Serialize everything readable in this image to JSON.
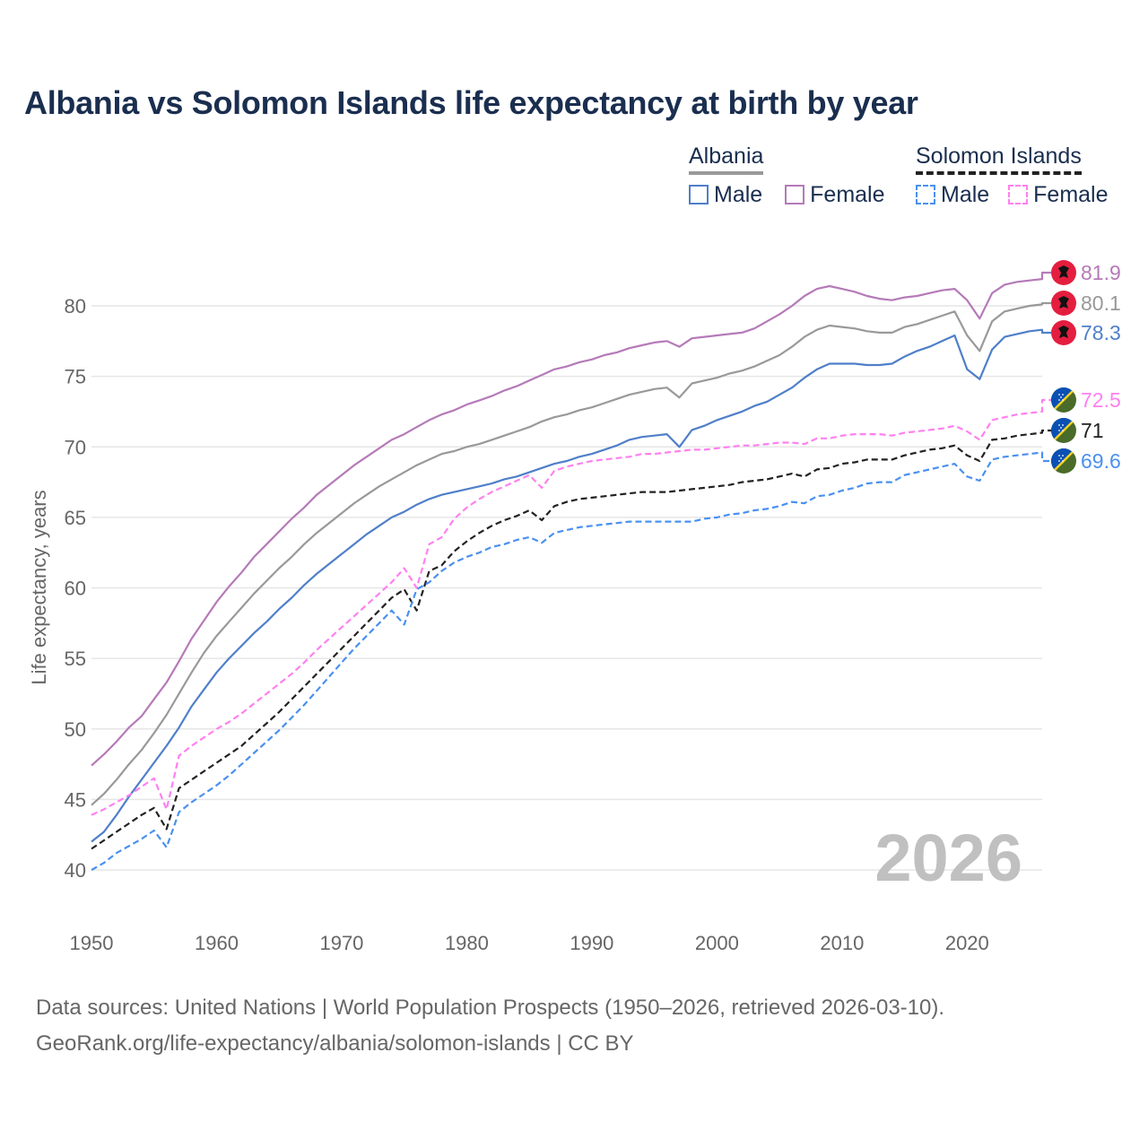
{
  "title": "Albania vs Solomon Islands life expectancy at birth by year",
  "legend": {
    "groups": [
      {
        "name": "Albania",
        "line_color": "#999999",
        "line_style": "solid",
        "items": [
          {
            "label": "Male",
            "color": "#4f7fc9",
            "style": "solid"
          },
          {
            "label": "Female",
            "color": "#b57ab8",
            "style": "solid"
          }
        ]
      },
      {
        "name": "Solomon Islands",
        "line_color": "#222222",
        "line_style": "dashed",
        "items": [
          {
            "label": "Male",
            "color": "#4a90f0",
            "style": "dashed"
          },
          {
            "label": "Female",
            "color": "#ff80f0",
            "style": "dashed"
          }
        ]
      }
    ]
  },
  "year_label": "2026",
  "footer": {
    "line1": "Data sources: United Nations | World Population Prospects (1950–2026, retrieved 2026-03-10).",
    "line2": "GeoRank.org/life-expectancy/albania/solomon-islands | CC BY"
  },
  "chart_data": {
    "type": "line",
    "title": "Albania vs Solomon Islands life expectancy at birth by year",
    "xlabel": "",
    "ylabel": "Life expectancy, years",
    "xlim": [
      1950,
      2026
    ],
    "ylim": [
      38,
      84
    ],
    "x_ticks": [
      1950,
      1960,
      1970,
      1980,
      1990,
      2000,
      2010,
      2020
    ],
    "y_ticks": [
      40,
      45,
      50,
      55,
      60,
      65,
      70,
      75,
      80
    ],
    "grid": true,
    "x": [
      1950,
      1951,
      1952,
      1953,
      1954,
      1955,
      1956,
      1957,
      1958,
      1959,
      1960,
      1961,
      1962,
      1963,
      1964,
      1965,
      1966,
      1967,
      1968,
      1969,
      1970,
      1971,
      1972,
      1973,
      1974,
      1975,
      1976,
      1977,
      1978,
      1979,
      1980,
      1981,
      1982,
      1983,
      1984,
      1985,
      1986,
      1987,
      1988,
      1989,
      1990,
      1991,
      1992,
      1993,
      1994,
      1995,
      1996,
      1997,
      1998,
      1999,
      2000,
      2001,
      2002,
      2003,
      2004,
      2005,
      2006,
      2007,
      2008,
      2009,
      2010,
      2011,
      2012,
      2013,
      2014,
      2015,
      2016,
      2017,
      2018,
      2019,
      2020,
      2021,
      2022,
      2023,
      2024,
      2025,
      2026
    ],
    "series": [
      {
        "name": "Albania Female",
        "color": "#b57ab8",
        "dash": false,
        "end_label": "81.9",
        "values": [
          47.4,
          48.2,
          49.1,
          50.1,
          50.9,
          52.1,
          53.3,
          54.8,
          56.4,
          57.7,
          59.0,
          60.1,
          61.1,
          62.2,
          63.1,
          64.0,
          64.9,
          65.7,
          66.6,
          67.3,
          68.0,
          68.7,
          69.3,
          69.9,
          70.5,
          70.9,
          71.4,
          71.9,
          72.3,
          72.6,
          73.0,
          73.3,
          73.6,
          74.0,
          74.3,
          74.7,
          75.1,
          75.5,
          75.7,
          76.0,
          76.2,
          76.5,
          76.7,
          77.0,
          77.2,
          77.4,
          77.5,
          77.1,
          77.7,
          77.8,
          77.9,
          78.0,
          78.1,
          78.4,
          78.9,
          79.4,
          80.0,
          80.7,
          81.2,
          81.4,
          81.2,
          81.0,
          80.7,
          80.5,
          80.4,
          80.6,
          80.7,
          80.9,
          81.1,
          81.2,
          80.4,
          79.1,
          80.9,
          81.5,
          81.7,
          81.8,
          81.9
        ]
      },
      {
        "name": "Albania Total",
        "color": "#999999",
        "dash": false,
        "end_label": "80.1",
        "values": [
          44.6,
          45.4,
          46.4,
          47.5,
          48.5,
          49.7,
          51.0,
          52.5,
          54.0,
          55.4,
          56.6,
          57.6,
          58.6,
          59.6,
          60.5,
          61.4,
          62.2,
          63.1,
          63.9,
          64.6,
          65.3,
          66.0,
          66.6,
          67.2,
          67.7,
          68.2,
          68.7,
          69.1,
          69.5,
          69.7,
          70.0,
          70.2,
          70.5,
          70.8,
          71.1,
          71.4,
          71.8,
          72.1,
          72.3,
          72.6,
          72.8,
          73.1,
          73.4,
          73.7,
          73.9,
          74.1,
          74.2,
          73.5,
          74.5,
          74.7,
          74.9,
          75.2,
          75.4,
          75.7,
          76.1,
          76.5,
          77.1,
          77.8,
          78.3,
          78.6,
          78.5,
          78.4,
          78.2,
          78.1,
          78.1,
          78.5,
          78.7,
          79.0,
          79.3,
          79.6,
          77.9,
          76.8,
          78.9,
          79.6,
          79.8,
          80.0,
          80.1
        ]
      },
      {
        "name": "Albania Male",
        "color": "#4f7fc9",
        "dash": false,
        "end_label": "78.3",
        "values": [
          42.0,
          42.7,
          43.9,
          45.2,
          46.4,
          47.6,
          48.8,
          50.1,
          51.6,
          52.8,
          54.0,
          55.0,
          55.9,
          56.8,
          57.6,
          58.5,
          59.3,
          60.2,
          61.0,
          61.7,
          62.4,
          63.1,
          63.8,
          64.4,
          65.0,
          65.4,
          65.9,
          66.3,
          66.6,
          66.8,
          67.0,
          67.2,
          67.4,
          67.7,
          67.9,
          68.2,
          68.5,
          68.8,
          69.0,
          69.3,
          69.5,
          69.8,
          70.1,
          70.5,
          70.7,
          70.8,
          70.9,
          70.0,
          71.2,
          71.5,
          71.9,
          72.2,
          72.5,
          72.9,
          73.2,
          73.7,
          74.2,
          74.9,
          75.5,
          75.9,
          75.9,
          75.9,
          75.8,
          75.8,
          75.9,
          76.4,
          76.8,
          77.1,
          77.5,
          77.9,
          75.5,
          74.8,
          76.9,
          77.8,
          78.0,
          78.2,
          78.3
        ]
      },
      {
        "name": "Solomon Islands Female",
        "color": "#ff80f0",
        "dash": true,
        "end_label": "72.5",
        "values": [
          43.9,
          44.3,
          44.8,
          45.3,
          45.9,
          46.5,
          44.3,
          48.1,
          48.8,
          49.4,
          50.0,
          50.5,
          51.1,
          51.8,
          52.5,
          53.2,
          53.9,
          54.7,
          55.6,
          56.4,
          57.2,
          58.0,
          58.8,
          59.6,
          60.4,
          61.4,
          60.0,
          63.1,
          63.6,
          64.9,
          65.7,
          66.3,
          66.8,
          67.2,
          67.6,
          68.0,
          67.1,
          68.3,
          68.6,
          68.8,
          69.0,
          69.1,
          69.2,
          69.3,
          69.5,
          69.5,
          69.6,
          69.7,
          69.8,
          69.8,
          69.9,
          70.0,
          70.1,
          70.1,
          70.2,
          70.3,
          70.3,
          70.2,
          70.6,
          70.6,
          70.8,
          70.9,
          70.9,
          70.9,
          70.8,
          71.0,
          71.1,
          71.2,
          71.3,
          71.5,
          71.1,
          70.5,
          71.9,
          72.1,
          72.3,
          72.4,
          72.5
        ]
      },
      {
        "name": "Solomon Islands Total",
        "color": "#222222",
        "dash": true,
        "end_label": "71",
        "values": [
          41.5,
          42.1,
          42.7,
          43.3,
          43.9,
          44.4,
          42.9,
          45.8,
          46.4,
          47.0,
          47.6,
          48.2,
          48.8,
          49.6,
          50.4,
          51.2,
          52.1,
          53.0,
          53.9,
          54.8,
          55.7,
          56.6,
          57.5,
          58.4,
          59.3,
          59.9,
          58.4,
          61.2,
          61.6,
          62.6,
          63.3,
          63.9,
          64.4,
          64.8,
          65.1,
          65.5,
          64.8,
          65.8,
          66.1,
          66.3,
          66.4,
          66.5,
          66.6,
          66.7,
          66.8,
          66.8,
          66.8,
          66.9,
          67.0,
          67.1,
          67.2,
          67.3,
          67.5,
          67.6,
          67.7,
          67.9,
          68.1,
          67.9,
          68.4,
          68.5,
          68.8,
          68.9,
          69.1,
          69.1,
          69.1,
          69.4,
          69.6,
          69.8,
          69.9,
          70.1,
          69.4,
          69.0,
          70.5,
          70.6,
          70.8,
          70.9,
          71.0
        ]
      },
      {
        "name": "Solomon Islands Male",
        "color": "#4a90f0",
        "dash": true,
        "end_label": "69.6",
        "values": [
          40.0,
          40.5,
          41.2,
          41.7,
          42.2,
          42.8,
          41.6,
          44.1,
          44.8,
          45.4,
          46.0,
          46.7,
          47.5,
          48.3,
          49.1,
          49.9,
          50.8,
          51.7,
          52.7,
          53.7,
          54.7,
          55.7,
          56.6,
          57.5,
          58.4,
          57.4,
          59.9,
          60.4,
          61.2,
          61.8,
          62.2,
          62.5,
          62.9,
          63.1,
          63.4,
          63.6,
          63.2,
          63.9,
          64.1,
          64.3,
          64.4,
          64.5,
          64.6,
          64.7,
          64.7,
          64.7,
          64.7,
          64.7,
          64.7,
          64.9,
          65.0,
          65.2,
          65.3,
          65.5,
          65.6,
          65.8,
          66.1,
          66.0,
          66.5,
          66.6,
          66.9,
          67.1,
          67.4,
          67.5,
          67.5,
          68.0,
          68.2,
          68.4,
          68.6,
          68.8,
          67.9,
          67.6,
          69.1,
          69.3,
          69.4,
          69.5,
          69.6
        ]
      }
    ],
    "annotations": [
      "2026"
    ],
    "end_markers": [
      {
        "series": "Albania Female",
        "flag": "albania",
        "label": "81.9"
      },
      {
        "series": "Albania Total",
        "flag": "albania",
        "label": "80.1"
      },
      {
        "series": "Albania Male",
        "flag": "albania",
        "label": "78.3"
      },
      {
        "series": "Solomon Islands Female",
        "flag": "solomon-islands",
        "label": "72.5"
      },
      {
        "series": "Solomon Islands Total",
        "flag": "solomon-islands",
        "label": "71"
      },
      {
        "series": "Solomon Islands Male",
        "flag": "solomon-islands",
        "label": "69.6"
      }
    ]
  }
}
